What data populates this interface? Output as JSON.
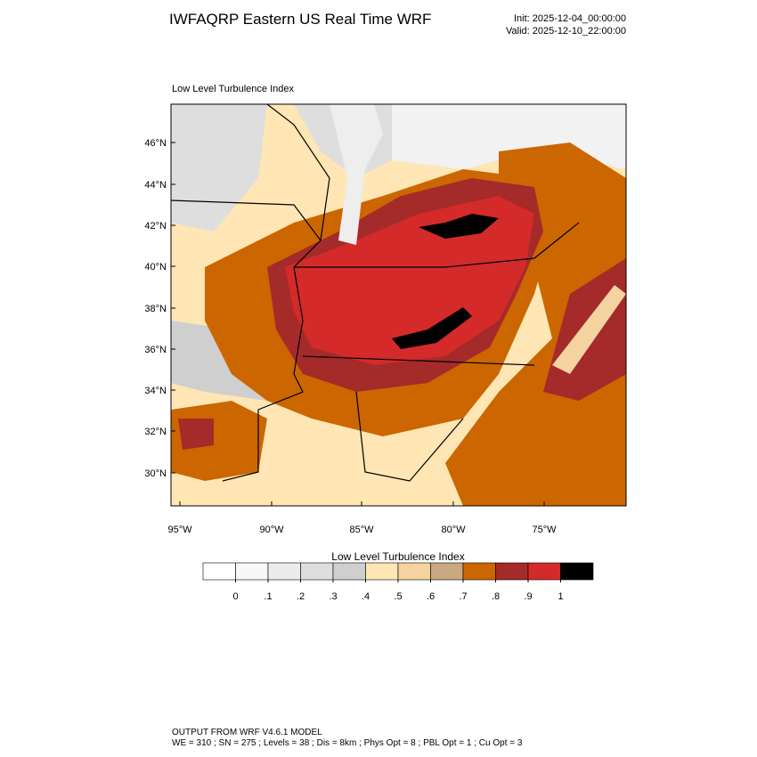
{
  "header": {
    "title": "IWFAQRP Eastern US Real Time WRF",
    "init": "Init: 2025-12-04_00:00:00",
    "valid": "Valid: 2025-12-10_22:00:00"
  },
  "map": {
    "title": "Low Level Turbulence Index",
    "lat_labels": [
      "46°N",
      "44°N",
      "42°N",
      "40°N",
      "38°N",
      "36°N",
      "34°N",
      "32°N",
      "30°N"
    ],
    "lon_labels": [
      "95°W",
      "90°W",
      "85°W",
      "80°W",
      "75°W"
    ]
  },
  "colorbar": {
    "title": "Low Level Turbulence Index",
    "colors": [
      "#ffffff",
      "#f7f7f7",
      "#ececec",
      "#dedede",
      "#cfcfcf",
      "#ffe6b4",
      "#f4d3a0",
      "#c9a982",
      "#cc6600",
      "#a52a2a",
      "#d42a2a",
      "#000000"
    ],
    "ticks": [
      {
        "value": 0,
        "label": "0"
      },
      {
        "value": 0.1,
        "label": ".1"
      },
      {
        "value": 0.2,
        "label": ".2"
      },
      {
        "value": 0.3,
        "label": ".3"
      },
      {
        "value": 0.4,
        "label": ".4"
      },
      {
        "value": 0.5,
        "label": ".5"
      },
      {
        "value": 0.6,
        "label": ".6"
      },
      {
        "value": 0.7,
        "label": ".7"
      },
      {
        "value": 0.8,
        "label": ".8"
      },
      {
        "value": 0.9,
        "label": ".9"
      },
      {
        "value": 1,
        "label": "1"
      }
    ]
  },
  "footer": {
    "line1": "OUTPUT FROM WRF V4.6.1 MODEL",
    "line2": "WE = 310 ; SN = 275 ; Levels = 38 ; Dis = 8km ; Phys Opt = 8 ; PBL Opt = 1 ; Cu Opt = 3"
  }
}
